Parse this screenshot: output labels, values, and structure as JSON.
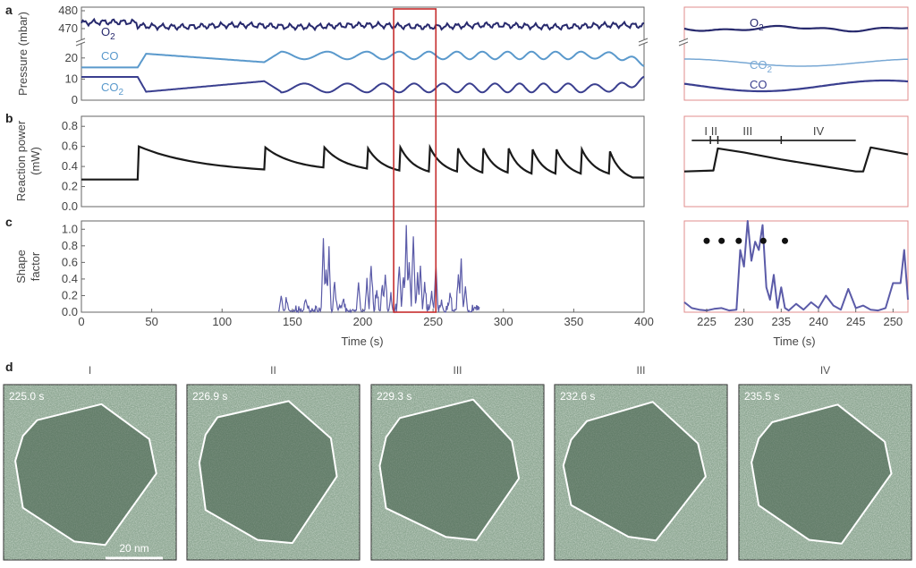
{
  "colors": {
    "o2": "#27296d",
    "co": "#5a99cc",
    "co2": "#3a3f8f",
    "co2_zoom": "#78a8d4",
    "power": "#1a1a1a",
    "shape": "#5b5ba8",
    "highlight": "#c62d2d",
    "zoom_frame": "#e08c8c",
    "particle_outline": "#ffffff",
    "tem_bg": "#8fa894"
  },
  "panel_labels": [
    "a",
    "b",
    "c",
    "d"
  ],
  "chart_data": [
    {
      "id": "pressure",
      "type": "line",
      "ylabel": "Pressure (mbar)",
      "ylim_upper": [
        465,
        482
      ],
      "yticks_upper": [
        470,
        480
      ],
      "ylim_lower": [
        0,
        25
      ],
      "yticks_lower": [
        0,
        10,
        20
      ],
      "xlim": [
        0,
        400
      ],
      "grid": false,
      "series": [
        {
          "name": "O2",
          "label_main": "O",
          "label_sub": "2",
          "mean": 471.5,
          "segment": "upper"
        },
        {
          "name": "CO",
          "label_main": "CO",
          "label_sub": "",
          "segment": "lower",
          "x": [
            0,
            40,
            46,
            60,
            130,
            142,
            157,
            175,
            203,
            225,
            245,
            265,
            400
          ],
          "y": [
            15.5,
            15.5,
            22,
            21,
            18,
            23,
            20,
            22,
            21,
            21,
            21,
            20.5,
            17
          ]
        },
        {
          "name": "CO2",
          "label_main": "CO",
          "label_sub": "2",
          "segment": "lower",
          "x": [
            0,
            40,
            46,
            60,
            130,
            142,
            157,
            175,
            203,
            225,
            245,
            265,
            400
          ],
          "y": [
            11,
            11,
            4,
            6,
            9,
            4,
            7,
            5,
            6,
            5,
            5,
            6,
            11
          ]
        }
      ]
    },
    {
      "id": "power",
      "type": "line",
      "ylabel": "Reaction power (mW)",
      "ylim": [
        0,
        0.9
      ],
      "yticks": [
        0.0,
        0.2,
        0.4,
        0.6,
        0.8
      ],
      "xlim": [
        0,
        400
      ],
      "grid": false,
      "series": [
        {
          "name": "Reaction power",
          "peaks": [
            40,
            130,
            172,
            203,
            226,
            247,
            267,
            285,
            303,
            320,
            337,
            355,
            375
          ],
          "peak_value": 0.6,
          "x": [
            0,
            40,
            40.8,
            130,
            130.8,
            172,
            172.8,
            203,
            203.8,
            226,
            226.8,
            247,
            247.8,
            267,
            267.8,
            285,
            285.8,
            303,
            303.8,
            320,
            320.8,
            337,
            337.8,
            355,
            355.8,
            375,
            375.8,
            392,
            400
          ],
          "y": [
            0.27,
            0.27,
            0.6,
            0.37,
            0.59,
            0.39,
            0.59,
            0.38,
            0.58,
            0.36,
            0.59,
            0.35,
            0.59,
            0.35,
            0.58,
            0.34,
            0.58,
            0.34,
            0.58,
            0.33,
            0.57,
            0.33,
            0.57,
            0.33,
            0.57,
            0.33,
            0.55,
            0.29,
            0.29
          ]
        }
      ]
    },
    {
      "id": "shape",
      "type": "line",
      "ylabel": "Shape factor",
      "xlabel": "Time (s)",
      "ylim": [
        0,
        1.1
      ],
      "yticks": [
        0.0,
        0.2,
        0.4,
        0.6,
        0.8,
        1.0
      ],
      "xlim": [
        0,
        400
      ],
      "xticks": [
        0,
        50,
        100,
        150,
        200,
        250,
        300,
        350,
        400
      ],
      "grid": false,
      "series": [
        {
          "name": "Shape factor",
          "x_range": [
            140,
            283
          ],
          "spikes": [
            [
              142,
              0.18
            ],
            [
              146,
              0.12
            ],
            [
              160,
              0.1
            ],
            [
              172,
              0.87
            ],
            [
              174,
              0.5
            ],
            [
              176,
              0.72
            ],
            [
              180,
              0.35
            ],
            [
              186,
              0.12
            ],
            [
              197,
              0.35
            ],
            [
              203,
              0.32
            ],
            [
              206,
              0.55
            ],
            [
              210,
              0.25
            ],
            [
              214,
              0.28
            ],
            [
              216,
              0.45
            ],
            [
              220,
              0.18
            ],
            [
              226,
              0.55
            ],
            [
              229,
              0.42
            ],
            [
              231,
              1.02
            ],
            [
              233,
              0.6
            ],
            [
              236,
              0.9
            ],
            [
              239,
              0.4
            ],
            [
              241,
              0.55
            ],
            [
              244,
              0.32
            ],
            [
              249,
              0.22
            ],
            [
              252,
              0.55
            ],
            [
              256,
              0.12
            ],
            [
              262,
              0.18
            ],
            [
              268,
              0.42
            ],
            [
              270,
              0.56
            ],
            [
              273,
              0.3
            ],
            [
              280,
              0.05
            ]
          ]
        }
      ]
    },
    {
      "id": "zoom_pressure",
      "type": "line",
      "xlim": [
        222,
        252
      ],
      "series": [
        {
          "name": "O2",
          "label_main": "O",
          "label_sub": "2"
        },
        {
          "name": "CO2",
          "label_main": "CO",
          "label_sub": "2"
        },
        {
          "name": "CO",
          "label_main": "CO",
          "label_sub": ""
        }
      ]
    },
    {
      "id": "zoom_power",
      "type": "line",
      "xlim": [
        222,
        252
      ],
      "ylim": [
        0,
        0.9
      ],
      "stage_bar": {
        "x_start": 223,
        "x_end": 245,
        "tick_positions": [
          225.5,
          226.5,
          235
        ]
      },
      "stages": [
        {
          "label": "I",
          "x": 224.9
        },
        {
          "label": "II",
          "x": 226.0
        },
        {
          "label": "III",
          "x": 230.5
        },
        {
          "label": "IV",
          "x": 240
        }
      ],
      "series": [
        {
          "name": "Reaction power",
          "x": [
            222,
            225.9,
            226.5,
            230,
            235,
            240,
            245,
            246,
            247,
            252
          ],
          "y": [
            0.35,
            0.36,
            0.58,
            0.54,
            0.47,
            0.41,
            0.35,
            0.35,
            0.59,
            0.52
          ]
        }
      ]
    },
    {
      "id": "zoom_shape",
      "type": "line",
      "xlabel": "Time (s)",
      "xlim": [
        222,
        252
      ],
      "ylim": [
        0,
        1.1
      ],
      "xticks": [
        225,
        230,
        235,
        240,
        245,
        250
      ],
      "markers_x": [
        225,
        227,
        229.3,
        232.6,
        235.5
      ],
      "marker_y": 0.86,
      "series": [
        {
          "name": "Shape factor",
          "x": [
            222,
            223,
            224,
            225,
            226,
            227,
            228,
            229,
            229.5,
            230,
            230.5,
            231,
            231.5,
            232,
            232.5,
            233,
            233.5,
            234,
            234.5,
            235,
            235.5,
            236,
            237,
            238,
            239,
            240,
            241,
            242,
            243,
            244,
            245,
            246,
            247,
            248,
            249,
            250,
            251,
            251.5,
            252
          ],
          "y": [
            0.12,
            0.05,
            0.03,
            0.02,
            0.04,
            0.05,
            0.02,
            0.03,
            0.75,
            0.55,
            1.1,
            0.62,
            0.85,
            0.75,
            1.05,
            0.3,
            0.15,
            0.45,
            0.05,
            0.3,
            0.05,
            0.02,
            0.1,
            0.03,
            0.12,
            0.05,
            0.2,
            0.08,
            0.03,
            0.28,
            0.05,
            0.08,
            0.03,
            0.02,
            0.05,
            0.35,
            0.35,
            0.75,
            0.15
          ]
        }
      ]
    }
  ],
  "highlight_window": [
    222,
    252
  ],
  "tem_frames": [
    {
      "stage": "I",
      "time": "225.0 s"
    },
    {
      "stage": "II",
      "time": "226.9 s"
    },
    {
      "stage": "III",
      "time": "229.3 s"
    },
    {
      "stage": "III",
      "time": "232.6 s"
    },
    {
      "stage": "IV",
      "time": "235.5 s"
    }
  ],
  "scale_bar": "20 nm"
}
